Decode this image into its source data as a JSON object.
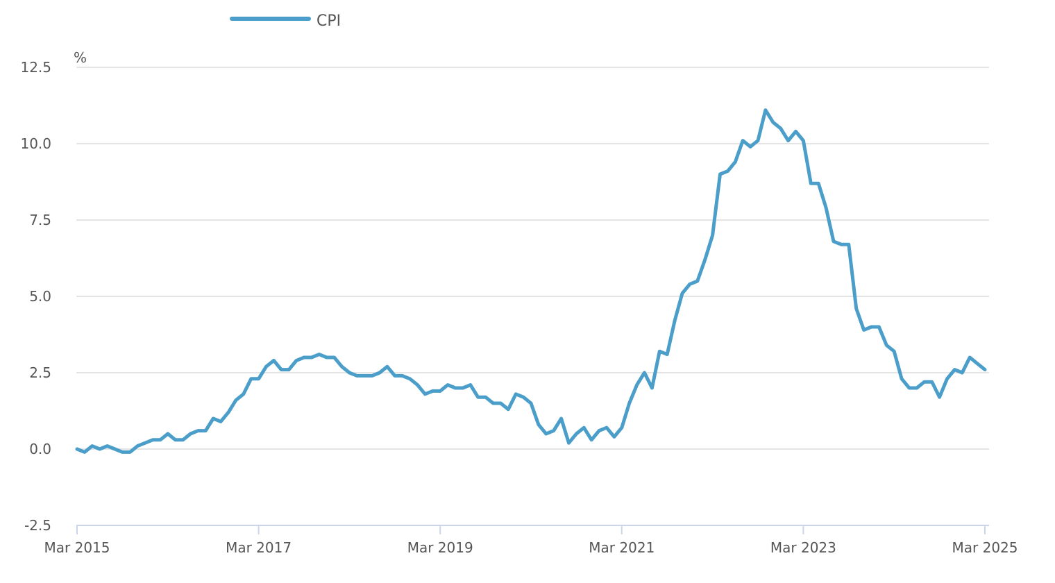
{
  "chart_data": {
    "type": "line",
    "title": "",
    "xlabel": "",
    "ylabel": "%",
    "ylim": [
      -2.5,
      12.5
    ],
    "yticks": [
      "12.5",
      "10.0",
      "7.5",
      "5.0",
      "2.5",
      "0.0",
      "-2.5"
    ],
    "ytick_values": [
      12.5,
      10.0,
      7.5,
      5.0,
      2.5,
      0.0,
      -2.5
    ],
    "xlim": [
      "2015-03",
      "2025-03"
    ],
    "xticks": [
      "Mar 2015",
      "Mar 2017",
      "Mar 2019",
      "Mar 2021",
      "Mar 2023",
      "Mar 2025"
    ],
    "xtick_values": [
      "2015-03",
      "2017-03",
      "2019-03",
      "2021-03",
      "2023-03",
      "2025-03"
    ],
    "grid": true,
    "legend": "top-left",
    "series": [
      {
        "name": "CPI",
        "color": "#4a9ec9",
        "x": [
          "2015-03",
          "2015-04",
          "2015-05",
          "2015-06",
          "2015-07",
          "2015-08",
          "2015-09",
          "2015-10",
          "2015-11",
          "2015-12",
          "2016-01",
          "2016-02",
          "2016-03",
          "2016-04",
          "2016-05",
          "2016-06",
          "2016-07",
          "2016-08",
          "2016-09",
          "2016-10",
          "2016-11",
          "2016-12",
          "2017-01",
          "2017-02",
          "2017-03",
          "2017-04",
          "2017-05",
          "2017-06",
          "2017-07",
          "2017-08",
          "2017-09",
          "2017-10",
          "2017-11",
          "2017-12",
          "2018-01",
          "2018-02",
          "2018-03",
          "2018-04",
          "2018-05",
          "2018-06",
          "2018-07",
          "2018-08",
          "2018-09",
          "2018-10",
          "2018-11",
          "2018-12",
          "2019-01",
          "2019-02",
          "2019-03",
          "2019-04",
          "2019-05",
          "2019-06",
          "2019-07",
          "2019-08",
          "2019-09",
          "2019-10",
          "2019-11",
          "2019-12",
          "2020-01",
          "2020-02",
          "2020-03",
          "2020-04",
          "2020-05",
          "2020-06",
          "2020-07",
          "2020-08",
          "2020-09",
          "2020-10",
          "2020-11",
          "2020-12",
          "2021-01",
          "2021-02",
          "2021-03",
          "2021-04",
          "2021-05",
          "2021-06",
          "2021-07",
          "2021-08",
          "2021-09",
          "2021-10",
          "2021-11",
          "2021-12",
          "2022-01",
          "2022-02",
          "2022-03",
          "2022-04",
          "2022-05",
          "2022-06",
          "2022-07",
          "2022-08",
          "2022-09",
          "2022-10",
          "2022-11",
          "2022-12",
          "2023-01",
          "2023-02",
          "2023-03",
          "2023-04",
          "2023-05",
          "2023-06",
          "2023-07",
          "2023-08",
          "2023-09",
          "2023-10",
          "2023-11",
          "2023-12",
          "2024-01",
          "2024-02",
          "2024-03",
          "2024-04",
          "2024-05",
          "2024-06",
          "2024-07",
          "2024-08",
          "2024-09",
          "2024-10",
          "2024-11",
          "2024-12",
          "2025-01",
          "2025-02",
          "2025-03"
        ],
        "values": [
          0.0,
          -0.1,
          0.1,
          0.0,
          0.1,
          0.0,
          -0.1,
          -0.1,
          0.1,
          0.2,
          0.3,
          0.3,
          0.5,
          0.3,
          0.3,
          0.5,
          0.6,
          0.6,
          1.0,
          0.9,
          1.2,
          1.6,
          1.8,
          2.3,
          2.3,
          2.7,
          2.9,
          2.6,
          2.6,
          2.9,
          3.0,
          3.0,
          3.1,
          3.0,
          3.0,
          2.7,
          2.5,
          2.4,
          2.4,
          2.4,
          2.5,
          2.7,
          2.4,
          2.4,
          2.3,
          2.1,
          1.8,
          1.9,
          1.9,
          2.1,
          2.0,
          2.0,
          2.1,
          1.7,
          1.7,
          1.5,
          1.5,
          1.3,
          1.8,
          1.7,
          1.5,
          0.8,
          0.5,
          0.6,
          1.0,
          0.2,
          0.5,
          0.7,
          0.3,
          0.6,
          0.7,
          0.4,
          0.7,
          1.5,
          2.1,
          2.5,
          2.0,
          3.2,
          3.1,
          4.2,
          5.1,
          5.4,
          5.5,
          6.2,
          7.0,
          9.0,
          9.1,
          9.4,
          10.1,
          9.9,
          10.1,
          11.1,
          10.7,
          10.5,
          10.1,
          10.4,
          10.1,
          8.7,
          8.7,
          7.9,
          6.8,
          6.7,
          6.7,
          4.6,
          3.9,
          4.0,
          4.0,
          3.4,
          3.2,
          2.3,
          2.0,
          2.0,
          2.2,
          2.2,
          1.7,
          2.3,
          2.6,
          2.5,
          3.0,
          2.8,
          2.6
        ]
      }
    ]
  }
}
